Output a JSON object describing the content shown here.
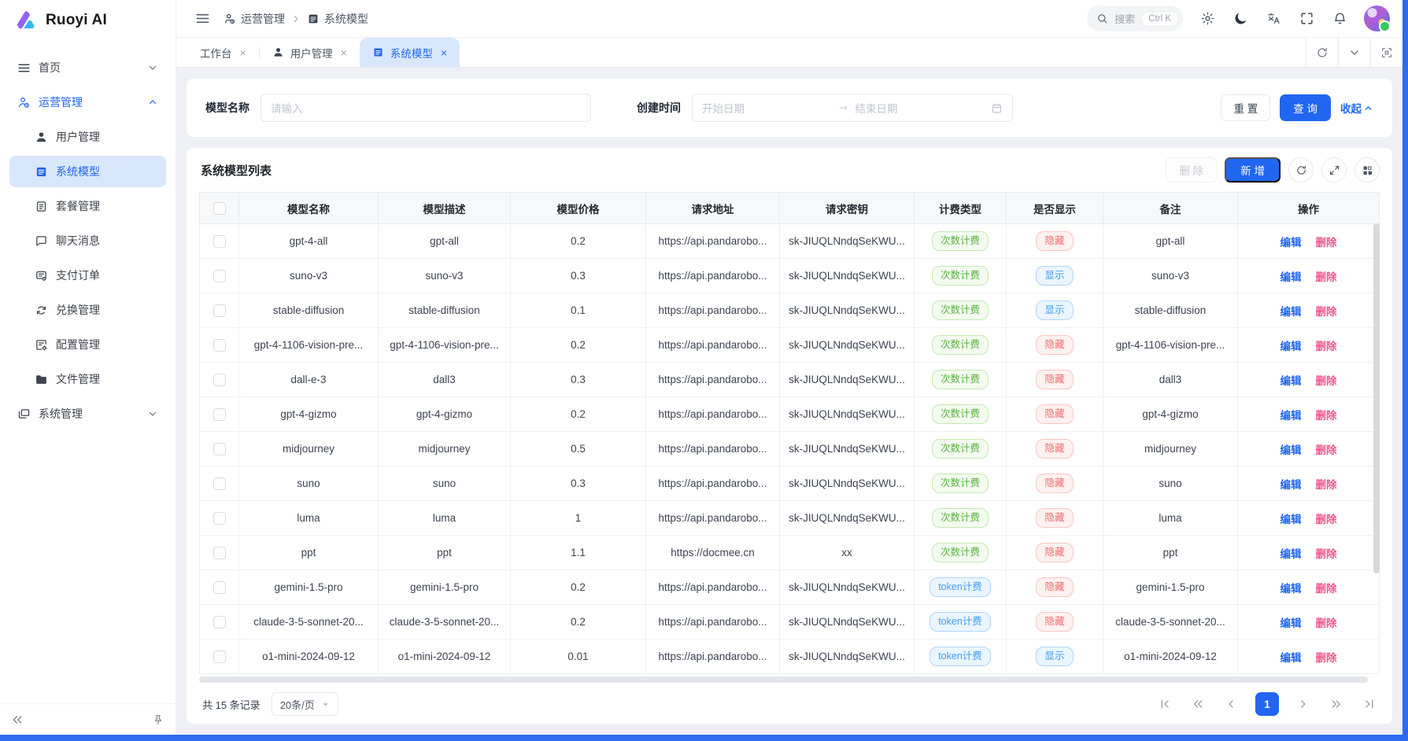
{
  "brand": {
    "name": "Ruoyi AI"
  },
  "sidebar": {
    "items": [
      {
        "key": "home",
        "label": "首页",
        "icon": "menu-lines",
        "chevron": "down",
        "level": "top"
      },
      {
        "key": "ops",
        "label": "运营管理",
        "icon": "person-gear",
        "chevron": "up",
        "level": "top",
        "active_parent": true
      },
      {
        "key": "users",
        "label": "用户管理",
        "icon": "person",
        "level": "sub"
      },
      {
        "key": "models",
        "label": "系统模型",
        "icon": "list",
        "level": "sub",
        "selected": true
      },
      {
        "key": "packages",
        "label": "套餐管理",
        "icon": "doc",
        "level": "sub"
      },
      {
        "key": "chats",
        "label": "聊天消息",
        "icon": "chat",
        "level": "sub"
      },
      {
        "key": "orders",
        "label": "支付订单",
        "icon": "pay",
        "level": "sub"
      },
      {
        "key": "redeem",
        "label": "兑换管理",
        "icon": "exchange",
        "level": "sub"
      },
      {
        "key": "config",
        "label": "配置管理",
        "icon": "gear-doc",
        "level": "sub"
      },
      {
        "key": "files",
        "label": "文件管理",
        "icon": "folder",
        "level": "sub"
      },
      {
        "key": "system",
        "label": "系统管理",
        "icon": "monitor",
        "chevron": "down",
        "level": "top"
      }
    ]
  },
  "header": {
    "breadcrumb": [
      {
        "label": "运营管理",
        "icon": "person-gear"
      },
      {
        "label": "系统模型",
        "icon": "list"
      }
    ],
    "search": {
      "label": "搜索",
      "shortcut": "Ctrl K"
    }
  },
  "tabs": {
    "items": [
      {
        "key": "workbench",
        "label": "工作台"
      },
      {
        "key": "users",
        "label": "用户管理",
        "icon": "person"
      },
      {
        "key": "models",
        "label": "系统模型",
        "icon": "list",
        "active": true
      }
    ]
  },
  "filter": {
    "model_name_label": "模型名称",
    "model_name_placeholder": "请输入",
    "create_time_label": "创建时间",
    "start_placeholder": "开始日期",
    "end_placeholder": "结束日期",
    "reset_label": "重 置",
    "search_label": "查 询",
    "collapse_label": "收起"
  },
  "panel": {
    "title": "系统模型列表",
    "delete_label": "删 除",
    "add_label": "新 增"
  },
  "table": {
    "columns": [
      "模型名称",
      "模型描述",
      "模型价格",
      "请求地址",
      "请求密钥",
      "计费类型",
      "是否显示",
      "备注",
      "操作"
    ],
    "actions": {
      "edit": "编辑",
      "delete": "删除"
    },
    "rows": [
      {
        "name": "gpt-4-all",
        "desc": "gpt-all",
        "price": "0.2",
        "url": "https://api.pandarobo...",
        "key": "sk-JIUQLNndqSeKWU...",
        "billing": "次数计费",
        "billing_style": "green",
        "visible": "隐藏",
        "visible_style": "red",
        "remark": "gpt-all"
      },
      {
        "name": "suno-v3",
        "desc": "suno-v3",
        "price": "0.3",
        "url": "https://api.pandarobo...",
        "key": "sk-JIUQLNndqSeKWU...",
        "billing": "次数计费",
        "billing_style": "green",
        "visible": "显示",
        "visible_style": "blue",
        "remark": "suno-v3"
      },
      {
        "name": "stable-diffusion",
        "desc": "stable-diffusion",
        "price": "0.1",
        "url": "https://api.pandarobo...",
        "key": "sk-JIUQLNndqSeKWU...",
        "billing": "次数计费",
        "billing_style": "green",
        "visible": "显示",
        "visible_style": "blue",
        "remark": "stable-diffusion"
      },
      {
        "name": "gpt-4-1106-vision-pre...",
        "desc": "gpt-4-1106-vision-pre...",
        "price": "0.2",
        "url": "https://api.pandarobo...",
        "key": "sk-JIUQLNndqSeKWU...",
        "billing": "次数计费",
        "billing_style": "green",
        "visible": "隐藏",
        "visible_style": "red",
        "remark": "gpt-4-1106-vision-pre..."
      },
      {
        "name": "dall-e-3",
        "desc": "dall3",
        "price": "0.3",
        "url": "https://api.pandarobo...",
        "key": "sk-JIUQLNndqSeKWU...",
        "billing": "次数计费",
        "billing_style": "green",
        "visible": "隐藏",
        "visible_style": "red",
        "remark": "dall3"
      },
      {
        "name": "gpt-4-gizmo",
        "desc": "gpt-4-gizmo",
        "price": "0.2",
        "url": "https://api.pandarobo...",
        "key": "sk-JIUQLNndqSeKWU...",
        "billing": "次数计费",
        "billing_style": "green",
        "visible": "隐藏",
        "visible_style": "red",
        "remark": "gpt-4-gizmo"
      },
      {
        "name": "midjourney",
        "desc": "midjourney",
        "price": "0.5",
        "url": "https://api.pandarobo...",
        "key": "sk-JIUQLNndqSeKWU...",
        "billing": "次数计费",
        "billing_style": "green",
        "visible": "隐藏",
        "visible_style": "red",
        "remark": "midjourney"
      },
      {
        "name": "suno",
        "desc": "suno",
        "price": "0.3",
        "url": "https://api.pandarobo...",
        "key": "sk-JIUQLNndqSeKWU...",
        "billing": "次数计费",
        "billing_style": "green",
        "visible": "隐藏",
        "visible_style": "red",
        "remark": "suno"
      },
      {
        "name": "luma",
        "desc": "luma",
        "price": "1",
        "url": "https://api.pandarobo...",
        "key": "sk-JIUQLNndqSeKWU...",
        "billing": "次数计费",
        "billing_style": "green",
        "visible": "隐藏",
        "visible_style": "red",
        "remark": "luma"
      },
      {
        "name": "ppt",
        "desc": "ppt",
        "price": "1.1",
        "url": "https://docmee.cn",
        "key": "xx",
        "billing": "次数计费",
        "billing_style": "green",
        "visible": "隐藏",
        "visible_style": "red",
        "remark": "ppt"
      },
      {
        "name": "gemini-1.5-pro",
        "desc": "gemini-1.5-pro",
        "price": "0.2",
        "url": "https://api.pandarobo...",
        "key": "sk-JIUQLNndqSeKWU...",
        "billing": "token计费",
        "billing_style": "blue",
        "visible": "隐藏",
        "visible_style": "red",
        "remark": "gemini-1.5-pro"
      },
      {
        "name": "claude-3-5-sonnet-20...",
        "desc": "claude-3-5-sonnet-20...",
        "price": "0.2",
        "url": "https://api.pandarobo...",
        "key": "sk-JIUQLNndqSeKWU...",
        "billing": "token计费",
        "billing_style": "blue",
        "visible": "隐藏",
        "visible_style": "red",
        "remark": "claude-3-5-sonnet-20..."
      },
      {
        "name": "o1-mini-2024-09-12",
        "desc": "o1-mini-2024-09-12",
        "price": "0.01",
        "url": "https://api.pandarobo...",
        "key": "sk-JIUQLNndqSeKWU...",
        "billing": "token计费",
        "billing_style": "blue",
        "visible": "显示",
        "visible_style": "blue",
        "remark": "o1-mini-2024-09-12"
      }
    ]
  },
  "pagination": {
    "total_text": "共 15 条记录",
    "page_size": "20条/页",
    "current_page": "1"
  },
  "colors": {
    "primary": "#2166f0",
    "active_tab_bg": "#d9e7fd",
    "count_billing_green": "#57b33c",
    "token_billing_blue": "#429bf5",
    "hidden_badge_red": "#f56c6c",
    "shown_badge_blue": "#429bf5",
    "edit_link": "#2166f0",
    "delete_link": "#f0548c",
    "desktop_edge": "#2e6bf0"
  }
}
